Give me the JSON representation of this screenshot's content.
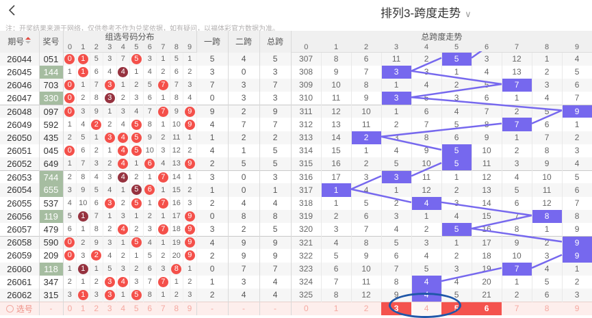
{
  "header": {
    "title": "排列3-跨度走势",
    "chevron": "∨",
    "note": "注：开奖结果来源于网络，仅供参考不作为兑奖依据，如有疑问，以福体彩官方数据为准。"
  },
  "table": {
    "col_issue": "期号",
    "col_prize": "奖号",
    "col_dist": "组选号码分布",
    "col_k1": "一跨",
    "col_k2": "二跨",
    "col_k3": "总跨",
    "col_trend": "总跨度走势",
    "digits": [
      "0",
      "1",
      "2",
      "3",
      "4",
      "5",
      "6",
      "7",
      "8",
      "9"
    ],
    "rows": [
      {
        "issue": "26044",
        "prize": "051",
        "green": false,
        "dist": [
          [
            0,
            1
          ],
          [
            1,
            1
          ],
          [
            5,
            0
          ],
          [
            3,
            0
          ],
          [
            7,
            0
          ],
          [
            5,
            1
          ],
          [
            3,
            0
          ],
          [
            1,
            0
          ],
          [
            5,
            0
          ],
          [
            1,
            0
          ]
        ],
        "k1": "5",
        "k2": "4",
        "k3": "5",
        "right": [
          "307",
          "8",
          "6",
          "11",
          "2",
          "5",
          "3",
          "12",
          "1",
          "4"
        ],
        "hl": 5
      },
      {
        "issue": "26045",
        "prize": "144",
        "green": true,
        "dist": [
          [
            1,
            0
          ],
          [
            1,
            1
          ],
          [
            6,
            0
          ],
          [
            4,
            0
          ],
          [
            4,
            2
          ],
          [
            1,
            0
          ],
          [
            4,
            0
          ],
          [
            2,
            0
          ],
          [
            6,
            0
          ],
          [
            2,
            0
          ]
        ],
        "k1": "3",
        "k2": "0",
        "k3": "3",
        "right": [
          "308",
          "9",
          "7",
          "3",
          "3",
          "1",
          "4",
          "13",
          "2",
          "5"
        ],
        "hl": 3
      },
      {
        "issue": "26046",
        "prize": "703",
        "green": false,
        "dist": [
          [
            0,
            1
          ],
          [
            1,
            0
          ],
          [
            7,
            0
          ],
          [
            3,
            1
          ],
          [
            1,
            0
          ],
          [
            2,
            0
          ],
          [
            5,
            0
          ],
          [
            7,
            1
          ],
          [
            7,
            0
          ],
          [
            3,
            0
          ]
        ],
        "k1": "7",
        "k2": "3",
        "k3": "7",
        "right": [
          "309",
          "10",
          "8",
          "1",
          "4",
          "2",
          "5",
          "7",
          "3",
          "6"
        ],
        "hl": 7
      },
      {
        "issue": "26047",
        "prize": "330",
        "green": true,
        "dist": [
          [
            0,
            1
          ],
          [
            2,
            0
          ],
          [
            8,
            0
          ],
          [
            3,
            2
          ],
          [
            2,
            0
          ],
          [
            3,
            0
          ],
          [
            6,
            0
          ],
          [
            1,
            0
          ],
          [
            8,
            0
          ],
          [
            4,
            0
          ]
        ],
        "k1": "0",
        "k2": "3",
        "k3": "3",
        "right": [
          "310",
          "11",
          "9",
          "3",
          "5",
          "3",
          "6",
          "1",
          "4",
          "7"
        ],
        "hl": 3
      },
      {
        "issue": "26048",
        "prize": "097",
        "green": false,
        "dist": [
          [
            0,
            1
          ],
          [
            3,
            0
          ],
          [
            9,
            0
          ],
          [
            1,
            0
          ],
          [
            3,
            0
          ],
          [
            4,
            0
          ],
          [
            7,
            0
          ],
          [
            7,
            1
          ],
          [
            9,
            0
          ],
          [
            9,
            1
          ]
        ],
        "k1": "9",
        "k2": "2",
        "k3": "9",
        "right": [
          "311",
          "12",
          "10",
          "1",
          "6",
          "4",
          "7",
          "2",
          "5",
          "9"
        ],
        "hl": 9
      },
      {
        "issue": "26049",
        "prize": "592",
        "green": false,
        "dist": [
          [
            1,
            0
          ],
          [
            4,
            0
          ],
          [
            2,
            1
          ],
          [
            2,
            0
          ],
          [
            4,
            0
          ],
          [
            5,
            1
          ],
          [
            8,
            0
          ],
          [
            1,
            0
          ],
          [
            10,
            0
          ],
          [
            9,
            1
          ]
        ],
        "k1": "4",
        "k2": "7",
        "k3": "7",
        "right": [
          "312",
          "13",
          "11",
          "2",
          "7",
          "5",
          "8",
          "7",
          "6",
          "1"
        ],
        "hl": 7
      },
      {
        "issue": "26050",
        "prize": "435",
        "green": false,
        "dist": [
          [
            2,
            0
          ],
          [
            5,
            0
          ],
          [
            1,
            0
          ],
          [
            3,
            1
          ],
          [
            4,
            1
          ],
          [
            5,
            1
          ],
          [
            9,
            0
          ],
          [
            2,
            0
          ],
          [
            11,
            0
          ],
          [
            1,
            0
          ]
        ],
        "k1": "1",
        "k2": "2",
        "k3": "2",
        "right": [
          "313",
          "14",
          "2",
          "3",
          "8",
          "6",
          "9",
          "1",
          "7",
          "2"
        ],
        "hl": 2
      },
      {
        "issue": "26051",
        "prize": "045",
        "green": false,
        "dist": [
          [
            0,
            1
          ],
          [
            6,
            0
          ],
          [
            2,
            0
          ],
          [
            1,
            0
          ],
          [
            4,
            1
          ],
          [
            5,
            1
          ],
          [
            10,
            0
          ],
          [
            3,
            0
          ],
          [
            12,
            0
          ],
          [
            2,
            0
          ]
        ],
        "k1": "4",
        "k2": "1",
        "k3": "5",
        "right": [
          "314",
          "15",
          "1",
          "4",
          "9",
          "5",
          "10",
          "2",
          "8",
          "3"
        ],
        "hl": 5
      },
      {
        "issue": "26052",
        "prize": "649",
        "green": false,
        "dist": [
          [
            1,
            0
          ],
          [
            7,
            0
          ],
          [
            3,
            0
          ],
          [
            2,
            0
          ],
          [
            4,
            1
          ],
          [
            1,
            0
          ],
          [
            6,
            1
          ],
          [
            4,
            0
          ],
          [
            13,
            0
          ],
          [
            9,
            1
          ]
        ],
        "k1": "2",
        "k2": "5",
        "k3": "5",
        "right": [
          "315",
          "16",
          "2",
          "5",
          "10",
          "5",
          "11",
          "3",
          "9",
          "4"
        ],
        "hl": 5
      },
      {
        "issue": "26053",
        "prize": "744",
        "green": true,
        "dist": [
          [
            2,
            0
          ],
          [
            8,
            0
          ],
          [
            4,
            0
          ],
          [
            3,
            0
          ],
          [
            4,
            2
          ],
          [
            2,
            0
          ],
          [
            1,
            0
          ],
          [
            7,
            1
          ],
          [
            14,
            0
          ],
          [
            1,
            0
          ]
        ],
        "k1": "3",
        "k2": "0",
        "k3": "3",
        "right": [
          "316",
          "17",
          "3",
          "3",
          "11",
          "1",
          "12",
          "4",
          "10",
          "5"
        ],
        "hl": 3
      },
      {
        "issue": "26054",
        "prize": "655",
        "green": true,
        "dist": [
          [
            3,
            0
          ],
          [
            9,
            0
          ],
          [
            5,
            0
          ],
          [
            4,
            0
          ],
          [
            1,
            0
          ],
          [
            5,
            2
          ],
          [
            6,
            1
          ],
          [
            1,
            0
          ],
          [
            15,
            0
          ],
          [
            2,
            0
          ]
        ],
        "k1": "1",
        "k2": "0",
        "k3": "1",
        "right": [
          "317",
          "1",
          "4",
          "1",
          "12",
          "2",
          "13",
          "5",
          "11",
          "6"
        ],
        "hl": 1
      },
      {
        "issue": "26055",
        "prize": "537",
        "green": false,
        "dist": [
          [
            4,
            0
          ],
          [
            10,
            0
          ],
          [
            6,
            0
          ],
          [
            3,
            1
          ],
          [
            2,
            0
          ],
          [
            5,
            1
          ],
          [
            1,
            0
          ],
          [
            7,
            1
          ],
          [
            16,
            0
          ],
          [
            3,
            0
          ]
        ],
        "k1": "2",
        "k2": "4",
        "k3": "4",
        "right": [
          "318",
          "1",
          "5",
          "2",
          "4",
          "3",
          "14",
          "6",
          "12",
          "7"
        ],
        "hl": 4
      },
      {
        "issue": "26056",
        "prize": "119",
        "green": true,
        "dist": [
          [
            5,
            0
          ],
          [
            1,
            2
          ],
          [
            7,
            0
          ],
          [
            1,
            0
          ],
          [
            3,
            0
          ],
          [
            1,
            0
          ],
          [
            2,
            0
          ],
          [
            1,
            0
          ],
          [
            17,
            0
          ],
          [
            9,
            1
          ]
        ],
        "k1": "0",
        "k2": "8",
        "k3": "8",
        "right": [
          "319",
          "2",
          "6",
          "3",
          "1",
          "4",
          "15",
          "7",
          "8",
          "8"
        ],
        "hl": 8
      },
      {
        "issue": "26057",
        "prize": "479",
        "green": false,
        "dist": [
          [
            6,
            0
          ],
          [
            1,
            0
          ],
          [
            8,
            0
          ],
          [
            2,
            0
          ],
          [
            4,
            1
          ],
          [
            2,
            0
          ],
          [
            3,
            0
          ],
          [
            7,
            1
          ],
          [
            18,
            0
          ],
          [
            9,
            1
          ]
        ],
        "k1": "3",
        "k2": "2",
        "k3": "5",
        "right": [
          "320",
          "3",
          "7",
          "4",
          "2",
          "5",
          "16",
          "8",
          "1",
          "9"
        ],
        "hl": 5
      },
      {
        "issue": "26058",
        "prize": "590",
        "green": false,
        "dist": [
          [
            0,
            1
          ],
          [
            2,
            0
          ],
          [
            9,
            0
          ],
          [
            3,
            0
          ],
          [
            1,
            0
          ],
          [
            5,
            1
          ],
          [
            4,
            0
          ],
          [
            1,
            0
          ],
          [
            19,
            0
          ],
          [
            9,
            1
          ]
        ],
        "k1": "4",
        "k2": "9",
        "k3": "9",
        "right": [
          "321",
          "4",
          "8",
          "5",
          "3",
          "1",
          "17",
          "9",
          "2",
          "9"
        ],
        "hl": 9
      },
      {
        "issue": "26059",
        "prize": "209",
        "green": false,
        "dist": [
          [
            0,
            1
          ],
          [
            3,
            0
          ],
          [
            2,
            1
          ],
          [
            4,
            0
          ],
          [
            2,
            0
          ],
          [
            1,
            0
          ],
          [
            5,
            0
          ],
          [
            2,
            0
          ],
          [
            20,
            0
          ],
          [
            9,
            1
          ]
        ],
        "k1": "2",
        "k2": "9",
        "k3": "9",
        "right": [
          "322",
          "5",
          "9",
          "6",
          "4",
          "2",
          "18",
          "10",
          "3",
          "9"
        ],
        "hl": 9
      },
      {
        "issue": "26060",
        "prize": "118",
        "green": true,
        "dist": [
          [
            1,
            0
          ],
          [
            1,
            2
          ],
          [
            1,
            0
          ],
          [
            5,
            0
          ],
          [
            3,
            0
          ],
          [
            2,
            0
          ],
          [
            6,
            0
          ],
          [
            3,
            0
          ],
          [
            8,
            1
          ],
          [
            1,
            0
          ]
        ],
        "k1": "0",
        "k2": "7",
        "k3": "7",
        "right": [
          "323",
          "6",
          "10",
          "7",
          "5",
          "3",
          "19",
          "7",
          "4",
          "1"
        ],
        "hl": 7
      },
      {
        "issue": "26061",
        "prize": "347",
        "green": false,
        "dist": [
          [
            2,
            0
          ],
          [
            1,
            0
          ],
          [
            2,
            0
          ],
          [
            3,
            1
          ],
          [
            4,
            1
          ],
          [
            3,
            0
          ],
          [
            7,
            0
          ],
          [
            7,
            1
          ],
          [
            1,
            0
          ],
          [
            2,
            0
          ]
        ],
        "k1": "1",
        "k2": "3",
        "k3": "4",
        "right": [
          "324",
          "7",
          "11",
          "8",
          "4",
          "4",
          "20",
          "1",
          "5",
          "2"
        ],
        "hl": 4
      },
      {
        "issue": "26062",
        "prize": "315",
        "green": false,
        "dist": [
          [
            3,
            0
          ],
          [
            1,
            1
          ],
          [
            3,
            0
          ],
          [
            3,
            1
          ],
          [
            1,
            0
          ],
          [
            5,
            1
          ],
          [
            8,
            0
          ],
          [
            1,
            0
          ],
          [
            2,
            0
          ],
          [
            3,
            0
          ]
        ],
        "k1": "2",
        "k2": "4",
        "k3": "4",
        "right": [
          "325",
          "8",
          "12",
          "9",
          "4",
          "5",
          "21",
          "2",
          "6",
          "3"
        ],
        "hl": 4
      }
    ],
    "block_starts": [
      "311",
      "316",
      "321"
    ],
    "trend_incoming_col": 6,
    "select_row": {
      "label": "选号",
      "dash": "-",
      "digits": [
        "0",
        "1",
        "2",
        "3",
        "4",
        "5",
        "6",
        "7",
        "8",
        "9"
      ],
      "right_red_cells": [
        3,
        5,
        6
      ],
      "right_light_cell": 4
    }
  },
  "colors": {
    "hit_circle": "#f4504a",
    "double_hit_circle": "#96323f",
    "trend_highlight": "#7668ee",
    "trend_line": "#7668ee",
    "prize_green": "#a6bda1",
    "select_red": "#f4534e",
    "select_row_bg": "#fdeeec",
    "annotation_blue": "#1f57a8",
    "header_bg": "#f0f0f0"
  }
}
